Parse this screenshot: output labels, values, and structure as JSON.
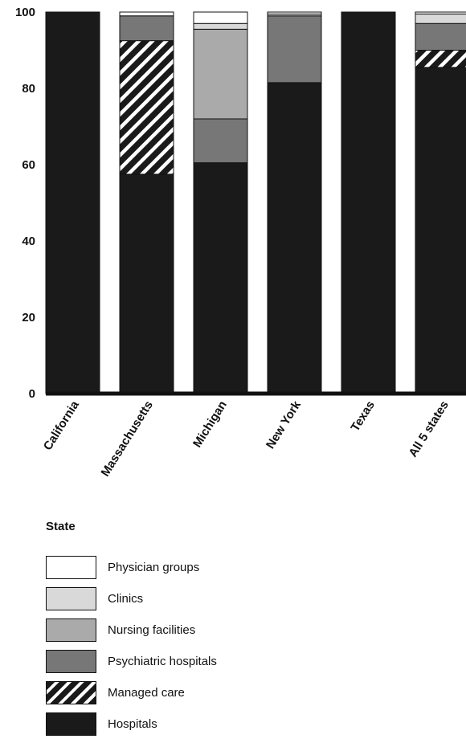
{
  "chart_data": {
    "type": "bar",
    "stacked": true,
    "categories": [
      "California",
      "Massachusetts",
      "Michigan",
      "New York",
      "Texas",
      "All 5 states"
    ],
    "series": [
      {
        "name": "Hospitals",
        "color": "#1a1a1a",
        "pattern": "solid",
        "values": [
          100,
          57.5,
          60.5,
          81.5,
          100,
          85.5
        ]
      },
      {
        "name": "Managed care",
        "color": "#1a1a1a",
        "pattern": "hatch",
        "values": [
          0,
          35,
          0,
          0,
          0,
          4.5
        ]
      },
      {
        "name": "Psychiatric hospitals",
        "color": "#777777",
        "pattern": "solid",
        "values": [
          0,
          6.5,
          11.5,
          17.5,
          0,
          7
        ]
      },
      {
        "name": "Nursing facilities",
        "color": "#aaaaaa",
        "pattern": "solid",
        "values": [
          0,
          0,
          23.5,
          0,
          0,
          0
        ]
      },
      {
        "name": "Clinics",
        "color": "#d9d9d9",
        "pattern": "solid",
        "values": [
          0,
          0,
          1.5,
          0.5,
          0,
          2.5
        ]
      },
      {
        "name": "Physician groups",
        "color": "#ffffff",
        "pattern": "solid",
        "values": [
          0,
          1,
          3,
          0.5,
          0,
          0.5
        ]
      }
    ],
    "yticks": [
      0,
      20,
      40,
      60,
      80,
      100
    ],
    "ylim": [
      0,
      100
    ],
    "xlabel": "State",
    "ylabel": "",
    "grid": false,
    "legend_position": "bottom-left",
    "legend_order": [
      "Physician groups",
      "Clinics",
      "Nursing facilities",
      "Psychiatric hospitals",
      "Managed care",
      "Hospitals"
    ]
  }
}
